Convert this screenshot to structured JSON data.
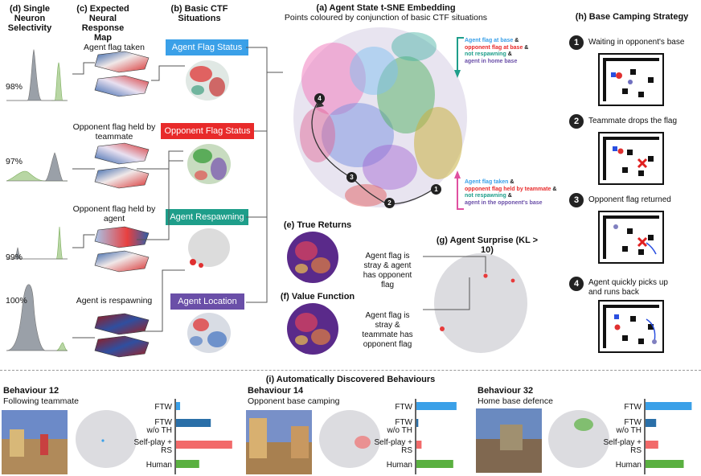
{
  "panel_d": {
    "title_line1": "(d) Single",
    "title_line2": "Neuron",
    "title_line3": "Selectivity",
    "percents": [
      "98%",
      "97%",
      "99%",
      "100%"
    ]
  },
  "panel_c": {
    "title_line1": "(c) Expected",
    "title_line2": "Neural Response",
    "title_line3": "Map",
    "labels": [
      {
        "line1": "Agent flag taken",
        "line2": ""
      },
      {
        "line1": "Opponent flag held by",
        "line2": "teammate"
      },
      {
        "line1": "Opponent flag held by",
        "line2": "agent"
      },
      {
        "line1": "Agent is respawning",
        "line2": ""
      }
    ]
  },
  "panel_b": {
    "title_line1": "(b) Basic CTF",
    "title_line2": "Situations",
    "boxes": [
      {
        "label": "Agent Flag Status",
        "color": "#3aa0e8"
      },
      {
        "label": "Opponent Flag Status",
        "color": "#e82a2a"
      },
      {
        "label": "Agent Respawning",
        "color": "#1e9e8a"
      },
      {
        "label": "Agent Location",
        "color": "#6a4fa8"
      }
    ]
  },
  "panel_a": {
    "title": "(a) Agent State t-SNE Embedding",
    "subtitle": "Points coloured by conjunction of basic CTF situations",
    "legend_top": [
      {
        "text": "Agent flag at base",
        "color": "#3aa0e8",
        "amp": "&"
      },
      {
        "text": "opponent flag at base",
        "color": "#e82a2a",
        "amp": "&"
      },
      {
        "text": "not respawning",
        "color": "#1e9e8a",
        "amp": "&"
      },
      {
        "text": "agent in home base",
        "color": "#6a4fa8",
        "amp": ""
      }
    ],
    "legend_bottom": [
      {
        "text": "Agent flag taken",
        "color": "#3aa0e8",
        "amp": "&"
      },
      {
        "text": "opponent flag held by teammate",
        "color": "#e82a2a",
        "amp": "&"
      },
      {
        "text": "not respawning",
        "color": "#1e9e8a",
        "amp": "&"
      },
      {
        "text": "agent in the opponent's base",
        "color": "#6a4fa8",
        "amp": ""
      }
    ],
    "markers": [
      "1",
      "2",
      "3",
      "4"
    ]
  },
  "panel_e": {
    "title": "(e) True Returns"
  },
  "panel_f": {
    "title": "(f) Value Function"
  },
  "panel_g": {
    "title": "(g) Agent Surprise (KL > 10)",
    "label1": [
      "Agent flag is",
      "stray & agent",
      "has opponent",
      "flag"
    ],
    "label2": [
      "Agent flag is",
      "stray &",
      "teammate has",
      "opponent flag"
    ]
  },
  "panel_h": {
    "title": "(h) Base Camping Strategy",
    "steps": [
      {
        "num": "1",
        "line1": "Waiting in opponent's base",
        "line2": ""
      },
      {
        "num": "2",
        "line1": "Teammate drops the flag",
        "line2": ""
      },
      {
        "num": "3",
        "line1": "Opponent flag returned",
        "line2": ""
      },
      {
        "num": "4",
        "line1": "Agent quickly picks up",
        "line2": "and runs back"
      }
    ]
  },
  "panel_i": {
    "title": "(i) Automatically Discovered Behaviours",
    "behaviours": [
      {
        "name": "Behaviour 12",
        "desc": "Following teammate"
      },
      {
        "name": "Behaviour 14",
        "desc": "Opponent base camping"
      },
      {
        "name": "Behaviour 32",
        "desc": "Home base defence"
      }
    ],
    "bar_labels": [
      {
        "line1": "FTW",
        "line2": ""
      },
      {
        "line1": "FTW",
        "line2": "w/o TH"
      },
      {
        "line1": "Self-play +",
        "line2": "RS"
      },
      {
        "line1": "Human",
        "line2": ""
      }
    ],
    "bar_colors": [
      "#3aa0e8",
      "#2a6fa8",
      "#f26a6a",
      "#5ab040"
    ]
  },
  "chart_data": [
    {
      "type": "bar",
      "title": "Behaviour 12",
      "categories": [
        "FTW",
        "FTW w/o TH",
        "Self-play + RS",
        "Human"
      ],
      "values": [
        0.07,
        0.6,
        0.97,
        0.4
      ]
    },
    {
      "type": "bar",
      "title": "Behaviour 14",
      "categories": [
        "FTW",
        "FTW w/o TH",
        "Self-play + RS",
        "Human"
      ],
      "values": [
        0.86,
        0.04,
        0.11,
        0.79
      ]
    },
    {
      "type": "bar",
      "title": "Behaviour 32",
      "categories": [
        "FTW",
        "FTW w/o TH",
        "Self-play + RS",
        "Human"
      ],
      "values": [
        0.87,
        0.2,
        0.24,
        0.72
      ]
    }
  ]
}
